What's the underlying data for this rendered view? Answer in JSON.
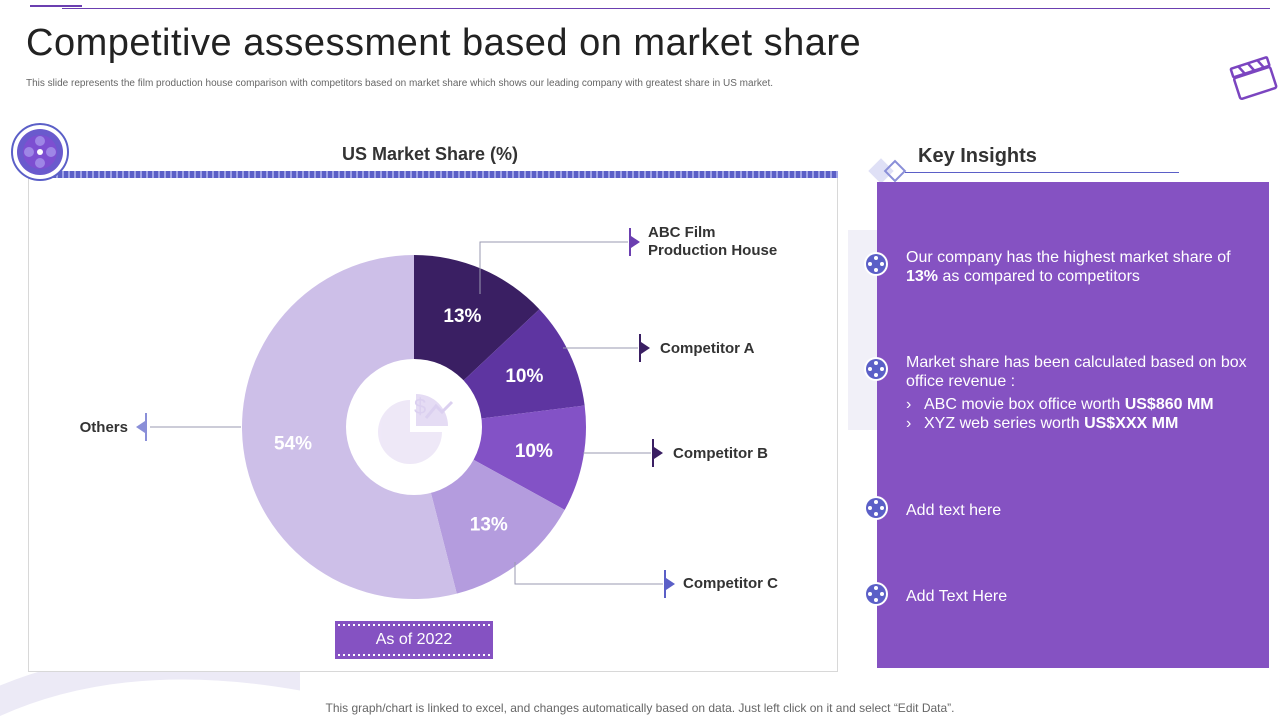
{
  "header": {
    "title": "Competitive assessment based on market share",
    "subtitle": "This slide represents the film production house comparison with competitors based on market share which shows our leading company with greatest share in US market."
  },
  "chart_data": {
    "type": "pie",
    "title": "US Market Share (%)",
    "donut": true,
    "categories": [
      "ABC Film Production House",
      "Competitor A",
      "Competitor B",
      "Competitor C",
      "Others"
    ],
    "values": [
      13,
      10,
      10,
      13,
      54
    ],
    "value_labels": [
      "13%",
      "10%",
      "10%",
      "13%",
      "54%"
    ],
    "colors": [
      "#3a1f63",
      "#5e35a1",
      "#8352c6",
      "#b49cde",
      "#cdbfe8"
    ],
    "label_colors": [
      "#ffffff",
      "#ffffff",
      "#ffffff",
      "#ffffff",
      "#ffffff"
    ],
    "legend_labels": [
      [
        "ABC Film",
        "Production House"
      ],
      [
        "Competitor A"
      ],
      [
        "Competitor B"
      ],
      [
        "Competitor C"
      ],
      [
        "Others"
      ]
    ],
    "marker_colors": [
      "#6b3fb0",
      "#3a1f63",
      "#3a1f63",
      "#5b5fc7",
      "#8a8fd8"
    ],
    "footnote": "As of 2022"
  },
  "insights": {
    "heading": "Key Insights",
    "panel_color": "#8552c2",
    "items": [
      {
        "text_pre": "Our company has the highest market share of ",
        "text_bold": "13%",
        "text_post": " as compared to competitors"
      },
      {
        "text": "Market share has been calculated based on box office revenue :",
        "sub_items": [
          {
            "chev": "›",
            "pre": "ABC movie box office worth ",
            "bold": "US$860 MM"
          },
          {
            "chev": "›",
            "pre": "XYZ web series worth ",
            "bold": "US$XXX MM"
          }
        ]
      },
      {
        "text": "Add text here"
      },
      {
        "text": "Add Text Here"
      }
    ]
  },
  "footer": {
    "note": "This graph/chart is linked to excel, and changes automatically based on data. Just left click on it and select “Edit Data”."
  },
  "icons": {
    "clapperboard": "clapperboard-icon",
    "film_reel": "film-reel-icon",
    "pie_dollar": "pie-chart-dollar-icon",
    "bullet": "film-reel-bullet-icon",
    "diamond": "diamond-icon"
  },
  "colors": {
    "accent": "#8552c2",
    "brand": "#6b3fb0",
    "stripe": "#5b5fc7"
  }
}
